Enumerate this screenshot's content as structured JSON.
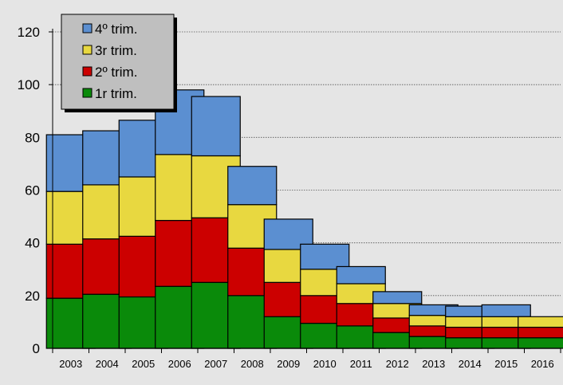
{
  "chart_data": {
    "type": "bar",
    "stacked": true,
    "categories": [
      "2003",
      "2004",
      "2005",
      "2006",
      "2007",
      "2008",
      "2009",
      "2010",
      "2011",
      "2012",
      "2013",
      "2014",
      "2015",
      "2016"
    ],
    "series": [
      {
        "name": "1r trim.",
        "color": "#0a8a0a",
        "values": [
          19,
          20.5,
          19.5,
          23.5,
          25,
          20,
          12,
          9.5,
          8.5,
          6,
          4.5,
          4,
          4,
          4
        ]
      },
      {
        "name": "2º trim.",
        "color": "#cc0000",
        "values": [
          20.5,
          21,
          23,
          25,
          24.5,
          18,
          13,
          10.5,
          8.5,
          5.5,
          4,
          4,
          4,
          4
        ]
      },
      {
        "name": "3r trim.",
        "color": "#e8d840",
        "values": [
          20,
          20.5,
          22.5,
          25,
          23.5,
          16.5,
          12.5,
          10,
          7.5,
          5.5,
          4,
          4,
          4,
          4
        ]
      },
      {
        "name": "4º trim.",
        "color": "#5b8fd1",
        "values": [
          21.5,
          20.5,
          21.5,
          24.5,
          22.5,
          14.5,
          11.5,
          9.5,
          6.5,
          4.5,
          4,
          4,
          4.5,
          0
        ]
      }
    ],
    "y_ticks": [
      0,
      20,
      40,
      60,
      80,
      100,
      120
    ],
    "ylim": [
      0,
      125
    ],
    "grid": "horizontal dashed",
    "legend": {
      "placement": "top-left",
      "order": [
        "4º trim.",
        "3r trim.",
        "2º trim.",
        "1r trim."
      ]
    }
  }
}
